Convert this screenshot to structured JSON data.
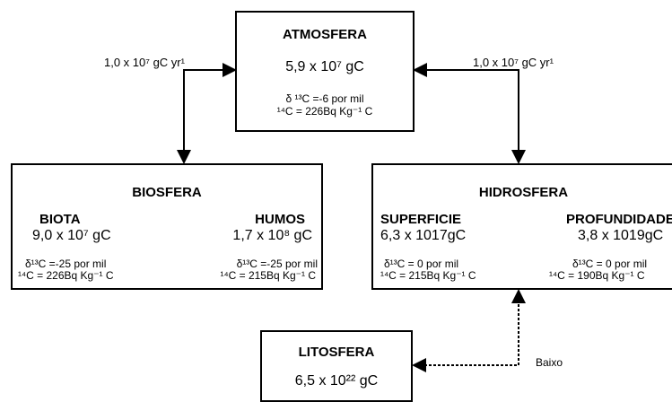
{
  "atmosphere": {
    "title": "ATMOSFERA",
    "amount": "5,9 x 10⁷ gC",
    "delta": "δ ¹³C =-6 por mil",
    "c14": "¹⁴C = 226Bq Kg⁻¹ C"
  },
  "flows": [
    {
      "label": "1,0 x 10⁷ gC yr¹"
    },
    {
      "label": "1,0 x 10⁷ gC yr¹"
    },
    {
      "label": "Baixo"
    }
  ],
  "biosphere": {
    "title": "BIOSFERA",
    "compartments": [
      {
        "name": "BIOTA",
        "amount": "9,0 x 10⁷ gC",
        "delta": "δ¹³C =-25 por mil",
        "c14": "¹⁴C = 226Bq Kg⁻¹ C"
      },
      {
        "name": "HUMOS",
        "amount": "1,7 x 10⁸ gC",
        "delta": "δ¹³C =-25 por mil",
        "c14": "¹⁴C = 215Bq Kg⁻¹ C"
      }
    ]
  },
  "hydrosphere": {
    "title": "HIDROSFERA",
    "compartments": [
      {
        "name": "SUPERFICIE",
        "amount": "6,3 x 1017gC",
        "delta": "δ¹³C = 0 por mil",
        "c14": "¹⁴C = 215Bq Kg⁻¹ C"
      },
      {
        "name": "PROFUNDIDADE",
        "amount": "3,8 x 1019gC",
        "delta": "δ¹³C = 0 por mil",
        "c14": "¹⁴C = 190Bq Kg⁻¹ C"
      }
    ]
  },
  "lithosphere": {
    "title": "LITOSFERA",
    "amount": "6,5 x 10²² gC"
  }
}
